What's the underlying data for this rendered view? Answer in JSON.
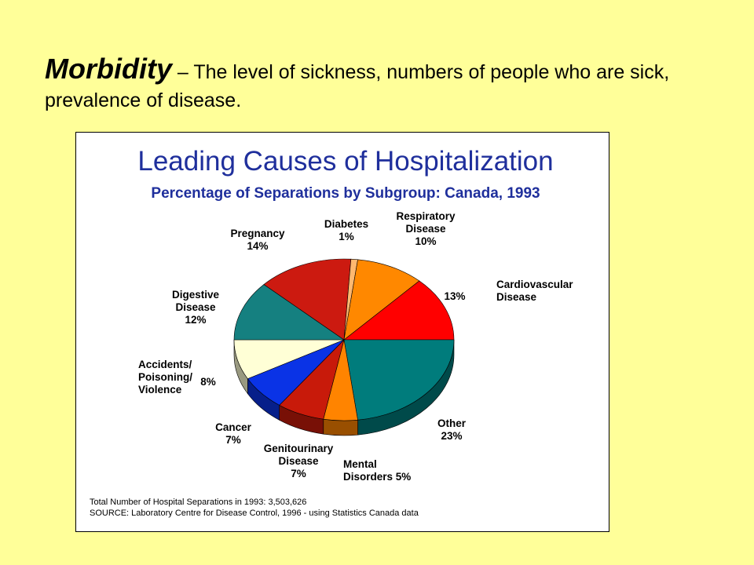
{
  "heading": {
    "term": "Morbidity",
    "definition": " – The level of sickness, numbers of people who are sick, prevalence of disease."
  },
  "chart_data": {
    "type": "pie",
    "title": "Leading Causes of Hospitalization",
    "subtitle": "Percentage of Separations by Subgroup: Canada, 1993",
    "slices": [
      {
        "name": "Cardiovascular Disease",
        "name_lines": [
          "Cardiovascular",
          "Disease"
        ],
        "value": 13,
        "value_label": "13%",
        "color": "#ff0000"
      },
      {
        "name": "Other",
        "name_lines": [
          "Other"
        ],
        "value": 23,
        "value_label": "23%",
        "color": "#007c7c"
      },
      {
        "name": "Mental Disorders",
        "name_lines": [
          "Mental",
          "Disorders"
        ],
        "value": 5,
        "value_label": "5%",
        "color": "#ff8400"
      },
      {
        "name": "Genitourinary Disease",
        "name_lines": [
          "Genitourinary",
          "Disease"
        ],
        "value": 7,
        "value_label": "7%",
        "color": "#c81a0a"
      },
      {
        "name": "Cancer",
        "name_lines": [
          "Cancer"
        ],
        "value": 7,
        "value_label": "7%",
        "color": "#0a33e6"
      },
      {
        "name": "Accidents/ Poisoning/ Violence",
        "name_lines": [
          "Accidents/",
          "Poisoning/",
          "Violence"
        ],
        "value": 8,
        "value_label": "8%",
        "color": "#ffffd6"
      },
      {
        "name": "Digestive Disease",
        "name_lines": [
          "Digestive",
          "Disease"
        ],
        "value": 12,
        "value_label": "12%",
        "color": "#158080"
      },
      {
        "name": "Pregnancy",
        "name_lines": [
          "Pregnancy"
        ],
        "value": 14,
        "value_label": "14%",
        "color": "#cc1a10"
      },
      {
        "name": "Diabetes",
        "name_lines": [
          "Diabetes"
        ],
        "value": 1,
        "value_label": "1%",
        "color": "#ffb870"
      },
      {
        "name": "Respiratory Disease",
        "name_lines": [
          "Respiratory",
          "Disease"
        ],
        "value": 10,
        "value_label": "10%",
        "color": "#ff8800"
      }
    ],
    "footnotes": [
      "Total Number of Hospital Separations in 1993: 3,503,626",
      "SOURCE: Laboratory Centre for Disease Control, 1996 - using Statistics Canada data"
    ]
  }
}
